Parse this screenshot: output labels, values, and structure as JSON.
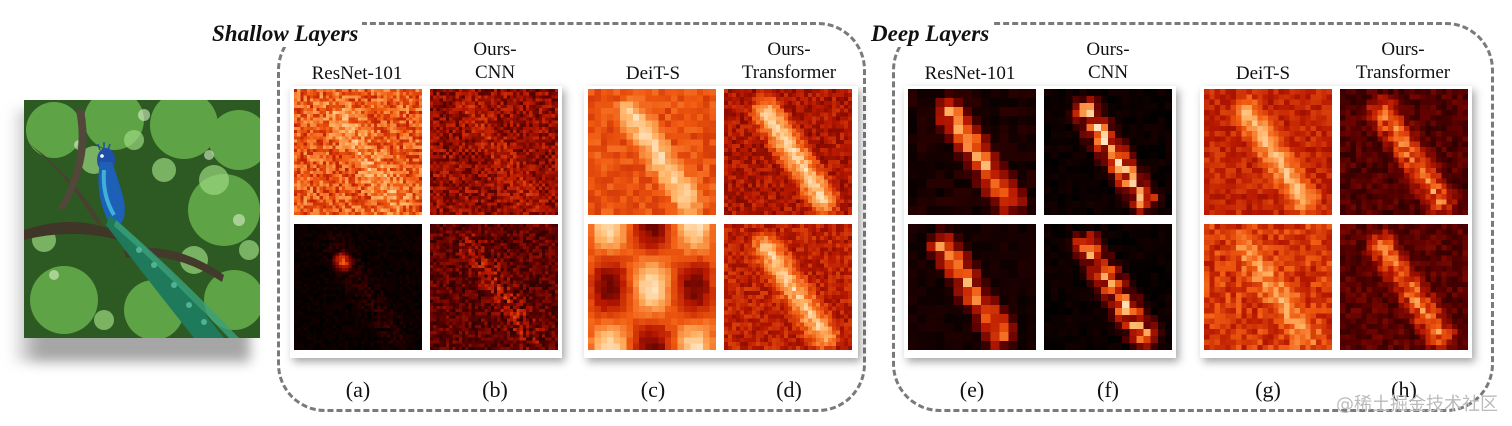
{
  "figure": {
    "groups": [
      {
        "title": "Shallow Layers",
        "columns": [
          {
            "label": "ResNet-101",
            "sub": "(a)"
          },
          {
            "label": "Ours-\nCNN",
            "sub": "(b)"
          },
          {
            "label": "DeiT-S",
            "sub": "(c)"
          },
          {
            "label": "Ours-\nTransformer",
            "sub": "(d)"
          }
        ]
      },
      {
        "title": "Deep Layers",
        "columns": [
          {
            "label": "ResNet-101",
            "sub": "(e)"
          },
          {
            "label": "Ours-\nCNN",
            "sub": "(f)"
          },
          {
            "label": "DeiT-S",
            "sub": "(g)"
          },
          {
            "label": "Ours-\nTransformer",
            "sub": "(h)"
          }
        ]
      }
    ],
    "input_image": "peacock-photo",
    "heatmap_colors": [
      "#000000",
      "#5a0000",
      "#b81800",
      "#f05a10",
      "#ffb060",
      "#fff2d8"
    ]
  },
  "watermark": "@稀土掘金技术社区"
}
